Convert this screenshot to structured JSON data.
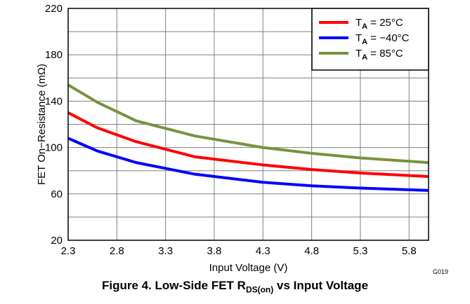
{
  "chart_data": {
    "type": "line",
    "xlabel": "Input Voltage (V)",
    "ylabel": "FET On−Resistance (mΩ)",
    "xlim": [
      2.3,
      6.0
    ],
    "ylim": [
      20,
      220
    ],
    "xticks": [
      "2.3",
      "2.8",
      "3.3",
      "3.8",
      "4.3",
      "4.8",
      "5.3",
      "5.8"
    ],
    "yticks": [
      "20",
      "60",
      "100",
      "140",
      "180",
      "220"
    ],
    "legend_position": "top-right",
    "grid": true,
    "series": [
      {
        "name": "25°C",
        "color": "#ff0000",
        "x": [
          2.3,
          2.6,
          3.0,
          3.6,
          4.3,
          4.8,
          5.3,
          6.0
        ],
        "y": [
          130,
          117,
          105,
          92,
          85,
          81,
          78,
          75
        ]
      },
      {
        "name": "−40°C",
        "color": "#0000ff",
        "x": [
          2.3,
          2.6,
          3.0,
          3.6,
          4.3,
          4.8,
          5.3,
          6.0
        ],
        "y": [
          108,
          97,
          87,
          77,
          70,
          67,
          65,
          63
        ]
      },
      {
        "name": "85°C",
        "color": "#77933c",
        "x": [
          2.3,
          2.6,
          3.0,
          3.6,
          4.3,
          4.8,
          5.3,
          6.0
        ],
        "y": [
          154,
          139,
          123,
          110,
          100,
          95,
          91,
          87
        ]
      }
    ]
  },
  "legend_prefix": "T",
  "legend_sub": "A",
  "legend_sep": " = ",
  "figure_code": "G019",
  "caption": {
    "prefix": "Figure 4. Low-Side FET R",
    "sub": "DS(on)",
    "suffix": " vs Input Voltage"
  }
}
